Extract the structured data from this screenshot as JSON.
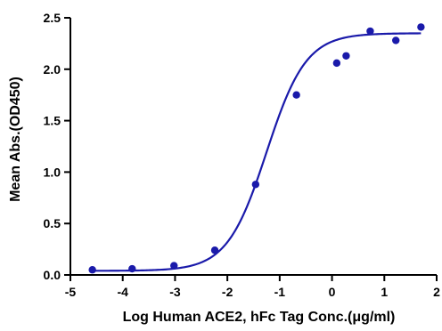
{
  "chart_data": {
    "type": "scatter",
    "xlabel": "Log Human ACE2, hFc Tag Conc.(μg/ml)",
    "ylabel": "Mean Abs.(OD450)",
    "xlim": [
      -5,
      2
    ],
    "ylim": [
      0,
      2.5
    ],
    "x_ticks": [
      -5,
      -4,
      -3,
      -2,
      -1,
      0,
      1,
      2
    ],
    "y_ticks": [
      0.0,
      0.5,
      1.0,
      1.5,
      2.0,
      2.5
    ],
    "x_tick_labels": [
      "-5",
      "-4",
      "-3",
      "-2",
      "-1",
      "0",
      "1",
      "2"
    ],
    "y_tick_labels": [
      "0.0",
      "0.5",
      "1.0",
      "1.5",
      "2.0",
      "2.5"
    ],
    "series": [
      {
        "x": [
          -4.58,
          -3.82,
          -3.02,
          -2.24,
          -1.46,
          -0.68,
          0.09,
          0.27,
          0.73,
          1.22,
          1.7
        ],
        "y": [
          0.05,
          0.06,
          0.09,
          0.24,
          0.88,
          1.75,
          2.06,
          2.13,
          2.37,
          2.28,
          2.41
        ],
        "color": "#1a1aaa"
      }
    ],
    "fit_curve": {
      "model": "four-parameter logistic",
      "bottom": 0.04,
      "top": 2.35,
      "log_ec50": -1.25,
      "hill_slope": 1.15,
      "color": "#1a1aaa"
    },
    "grid": false,
    "legend": "none"
  }
}
